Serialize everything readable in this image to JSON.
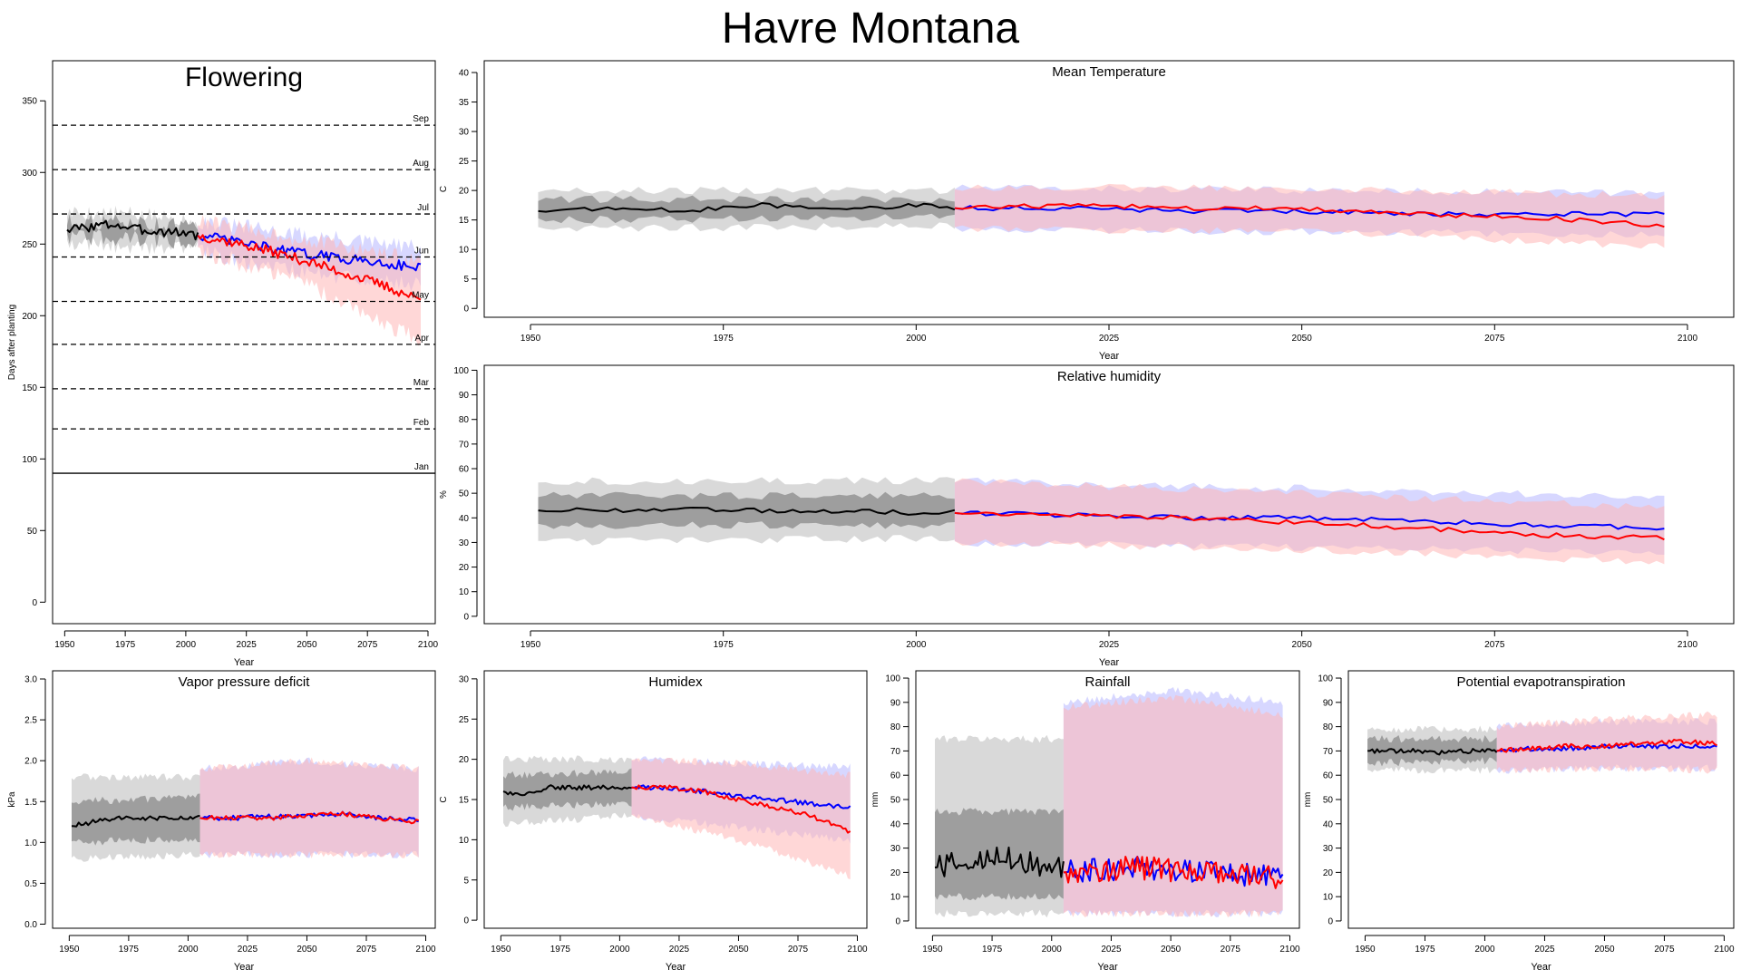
{
  "page": {
    "title": "Havre Montana"
  },
  "colors": {
    "historical": "#000000",
    "historical_band_outer": "#d9d9d9",
    "historical_band_inner": "#9e9e9e",
    "scenario_blue": "#0000ff",
    "scenario_red": "#ff0000",
    "band_blue": "#b7b7ff",
    "band_red": "#ffb7b7"
  },
  "chart_data": [
    {
      "id": "flowering",
      "type": "line",
      "title": "Flowering",
      "xlabel": "Year",
      "ylabel": "Days after planting",
      "xlim": [
        1945,
        2103
      ],
      "ylim": [
        -15,
        378
      ],
      "xticks": [
        1950,
        1975,
        2000,
        2025,
        2050,
        2075,
        2100
      ],
      "yticks": [
        0,
        50,
        100,
        150,
        200,
        250,
        300,
        350
      ],
      "hlines": [
        {
          "label": "Jan",
          "y": 90,
          "style": "solid"
        },
        {
          "label": "Feb",
          "y": 121,
          "style": "dashed"
        },
        {
          "label": "Mar",
          "y": 149,
          "style": "dashed"
        },
        {
          "label": "Apr",
          "y": 180,
          "style": "dashed"
        },
        {
          "label": "May",
          "y": 210,
          "style": "dashed"
        },
        {
          "label": "Jun",
          "y": 241,
          "style": "dashed"
        },
        {
          "label": "Jul",
          "y": 271,
          "style": "dashed"
        },
        {
          "label": "Aug",
          "y": 302,
          "style": "dashed"
        },
        {
          "label": "Sep",
          "y": 333,
          "style": "dashed"
        }
      ],
      "series": [
        {
          "x": [
            1951,
            1960,
            1970,
            1980,
            1990,
            2000,
            2005
          ],
          "values": [
            260,
            262,
            264,
            260,
            259,
            258,
            256
          ]
        },
        {
          "x": [
            2005,
            2020,
            2035,
            2050,
            2065,
            2080,
            2097
          ],
          "values": [
            256,
            252,
            247,
            243,
            240,
            237,
            234
          ]
        },
        {
          "x": [
            2005,
            2020,
            2035,
            2050,
            2065,
            2080,
            2097
          ],
          "values": [
            256,
            251,
            245,
            238,
            230,
            222,
            211
          ]
        }
      ],
      "bands": [
        {
          "x": [
            1951,
            1975,
            2005
          ],
          "lower": [
            250,
            249,
            246
          ],
          "upper": [
            272,
            271,
            267
          ]
        },
        {
          "x": [
            1951,
            1975,
            2005
          ],
          "lower": [
            255,
            254,
            251
          ],
          "upper": [
            266,
            265,
            262
          ]
        },
        {
          "x": [
            2005,
            2050,
            2097
          ],
          "lower": [
            245,
            230,
            222
          ],
          "upper": [
            266,
            256,
            247
          ]
        },
        {
          "x": [
            2005,
            2050,
            2097
          ],
          "lower": [
            245,
            222,
            182
          ],
          "upper": [
            266,
            253,
            238
          ]
        }
      ]
    },
    {
      "id": "mean-temperature",
      "type": "line",
      "title": "Mean Temperature",
      "xlabel": "Year",
      "ylabel": "C",
      "xlim": [
        1944,
        2106
      ],
      "ylim": [
        -1.5,
        42
      ],
      "xticks": [
        1950,
        1975,
        2000,
        2025,
        2050,
        2075,
        2100
      ],
      "yticks": [
        0,
        5,
        10,
        15,
        20,
        25,
        30,
        35,
        40
      ],
      "series": [
        {
          "x": [
            1951,
            1960,
            1970,
            1980,
            1990,
            2000,
            2005
          ],
          "values": [
            16.5,
            17,
            16.5,
            17.5,
            17,
            17.5,
            17
          ]
        },
        {
          "x": [
            2005,
            2020,
            2035,
            2050,
            2065,
            2080,
            2097
          ],
          "values": [
            17,
            17,
            16.5,
            16.5,
            16,
            16,
            16
          ]
        },
        {
          "x": [
            2005,
            2020,
            2035,
            2050,
            2065,
            2080,
            2097
          ],
          "values": [
            17,
            17.5,
            17,
            17,
            16,
            15.5,
            14
          ]
        }
      ],
      "bands": [
        {
          "x": [
            1951,
            2005
          ],
          "lower": [
            13.5,
            14
          ],
          "upper": [
            20,
            20
          ]
        },
        {
          "x": [
            1951,
            2005
          ],
          "lower": [
            15,
            15.5
          ],
          "upper": [
            18.5,
            18.5
          ]
        },
        {
          "x": [
            2005,
            2050,
            2097
          ],
          "lower": [
            13.5,
            13,
            12.5
          ],
          "upper": [
            20.5,
            20,
            19.5
          ]
        },
        {
          "x": [
            2005,
            2050,
            2097
          ],
          "lower": [
            13.5,
            13,
            10.5
          ],
          "upper": [
            20.5,
            20.5,
            19
          ]
        }
      ]
    },
    {
      "id": "relative-humidity",
      "type": "line",
      "title": "Relative humidity",
      "xlabel": "Year",
      "ylabel": "%",
      "xlim": [
        1944,
        2106
      ],
      "ylim": [
        -3,
        102
      ],
      "xticks": [
        1950,
        1975,
        2000,
        2025,
        2050,
        2075,
        2100
      ],
      "yticks": [
        0,
        10,
        20,
        30,
        40,
        50,
        60,
        70,
        80,
        90,
        100
      ],
      "series": [
        {
          "x": [
            1951,
            1960,
            1970,
            1980,
            1990,
            2000,
            2005
          ],
          "values": [
            43,
            43,
            44,
            43,
            43,
            42,
            43
          ]
        },
        {
          "x": [
            2005,
            2020,
            2035,
            2050,
            2065,
            2080,
            2097
          ],
          "values": [
            42,
            41,
            40,
            40,
            39,
            37,
            36
          ]
        },
        {
          "x": [
            2005,
            2020,
            2035,
            2050,
            2065,
            2080,
            2097
          ],
          "values": [
            42,
            41,
            40,
            38,
            36,
            33,
            32
          ]
        }
      ],
      "bands": [
        {
          "x": [
            1951,
            2005
          ],
          "lower": [
            30,
            32
          ],
          "upper": [
            55,
            55
          ]
        },
        {
          "x": [
            1951,
            2005
          ],
          "lower": [
            37,
            37
          ],
          "upper": [
            49,
            49
          ]
        },
        {
          "x": [
            2005,
            2050,
            2097
          ],
          "lower": [
            30,
            28,
            26
          ],
          "upper": [
            55,
            52,
            48
          ]
        },
        {
          "x": [
            2005,
            2050,
            2097
          ],
          "lower": [
            30,
            27,
            22
          ],
          "upper": [
            55,
            50,
            44
          ]
        }
      ]
    },
    {
      "id": "vapor-pressure-deficit",
      "type": "line",
      "title": "Vapor pressure deficit",
      "xlabel": "Year",
      "ylabel": "kPa",
      "xlim": [
        1943,
        2104
      ],
      "ylim": [
        -0.05,
        3.1
      ],
      "xticks": [
        1950,
        1975,
        2000,
        2025,
        2050,
        2075,
        2100
      ],
      "yticks": [
        0.0,
        0.5,
        1.0,
        1.5,
        2.0,
        2.5,
        3.0
      ],
      "series": [
        {
          "x": [
            1951,
            1960,
            1970,
            1980,
            1990,
            2000,
            2005
          ],
          "values": [
            1.2,
            1.25,
            1.3,
            1.3,
            1.3,
            1.3,
            1.3
          ]
        },
        {
          "x": [
            2005,
            2020,
            2035,
            2050,
            2065,
            2080,
            2097
          ],
          "values": [
            1.3,
            1.3,
            1.32,
            1.33,
            1.35,
            1.3,
            1.28
          ]
        },
        {
          "x": [
            2005,
            2020,
            2035,
            2050,
            2065,
            2080,
            2097
          ],
          "values": [
            1.3,
            1.3,
            1.3,
            1.33,
            1.35,
            1.3,
            1.25
          ]
        }
      ],
      "bands": [
        {
          "x": [
            1951,
            2005
          ],
          "lower": [
            0.8,
            0.85
          ],
          "upper": [
            1.8,
            1.8
          ]
        },
        {
          "x": [
            1951,
            2005
          ],
          "lower": [
            1.0,
            1.05
          ],
          "upper": [
            1.5,
            1.55
          ]
        },
        {
          "x": [
            2005,
            2050,
            2097
          ],
          "lower": [
            0.85,
            0.85,
            0.85
          ],
          "upper": [
            1.9,
            2.0,
            1.9
          ]
        },
        {
          "x": [
            2005,
            2050,
            2097
          ],
          "lower": [
            0.85,
            0.85,
            0.85
          ],
          "upper": [
            1.9,
            2.0,
            1.9
          ]
        }
      ]
    },
    {
      "id": "humidex",
      "type": "line",
      "title": "Humidex",
      "xlabel": "Year",
      "ylabel": "C",
      "xlim": [
        1943,
        2104
      ],
      "ylim": [
        -1,
        31
      ],
      "xticks": [
        1950,
        1975,
        2000,
        2025,
        2050,
        2075,
        2100
      ],
      "yticks": [
        0,
        5,
        10,
        15,
        20,
        25,
        30
      ],
      "series": [
        {
          "x": [
            1951,
            1960,
            1970,
            1980,
            1990,
            2000,
            2005
          ],
          "values": [
            16,
            15.5,
            16.5,
            16.5,
            16.5,
            16.5,
            16.5
          ]
        },
        {
          "x": [
            2005,
            2020,
            2035,
            2050,
            2065,
            2080,
            2097
          ],
          "values": [
            16.5,
            16.5,
            16,
            15.5,
            15,
            14.5,
            14
          ]
        },
        {
          "x": [
            2005,
            2020,
            2035,
            2050,
            2065,
            2080,
            2097
          ],
          "values": [
            16.5,
            16.5,
            16,
            15,
            14,
            13,
            11
          ]
        }
      ],
      "bands": [
        {
          "x": [
            1951,
            2005
          ],
          "lower": [
            12,
            13
          ],
          "upper": [
            20,
            20
          ]
        },
        {
          "x": [
            1951,
            2005
          ],
          "lower": [
            14,
            14.5
          ],
          "upper": [
            18,
            18.5
          ]
        },
        {
          "x": [
            2005,
            2050,
            2097
          ],
          "lower": [
            13,
            11.5,
            10
          ],
          "upper": [
            20,
            19.5,
            19
          ]
        },
        {
          "x": [
            2005,
            2050,
            2097
          ],
          "lower": [
            13,
            10,
            5.5
          ],
          "upper": [
            20,
            19.5,
            18
          ]
        }
      ]
    },
    {
      "id": "rainfall",
      "type": "line",
      "title": "Rainfall",
      "xlabel": "Year",
      "ylabel": "mm",
      "xlim": [
        1943,
        2104
      ],
      "ylim": [
        -3,
        103
      ],
      "xticks": [
        1950,
        1975,
        2000,
        2025,
        2050,
        2075,
        2100
      ],
      "yticks": [
        0,
        10,
        20,
        30,
        40,
        50,
        60,
        70,
        80,
        90,
        100
      ],
      "series": [
        {
          "x": [
            1951,
            1960,
            1970,
            1980,
            1990,
            2000,
            2005
          ],
          "values": [
            22,
            24,
            25,
            26,
            24,
            22,
            22
          ]
        },
        {
          "x": [
            2005,
            2020,
            2035,
            2050,
            2065,
            2080,
            2097
          ],
          "values": [
            20,
            21,
            22,
            21,
            20,
            19,
            18
          ]
        },
        {
          "x": [
            2005,
            2020,
            2035,
            2050,
            2065,
            2080,
            2097
          ],
          "values": [
            20,
            21,
            22,
            21,
            20,
            19,
            18
          ]
        }
      ],
      "bands": [
        {
          "x": [
            1951,
            2005
          ],
          "lower": [
            3,
            3
          ],
          "upper": [
            75,
            75
          ]
        },
        {
          "x": [
            1951,
            2005
          ],
          "lower": [
            10,
            10
          ],
          "upper": [
            45,
            45
          ]
        },
        {
          "x": [
            2005,
            2050,
            2097
          ],
          "lower": [
            3,
            3,
            3
          ],
          "upper": [
            90,
            95,
            90
          ]
        },
        {
          "x": [
            2005,
            2050,
            2097
          ],
          "lower": [
            3,
            3,
            3
          ],
          "upper": [
            88,
            92,
            85
          ]
        }
      ]
    },
    {
      "id": "potential-evapotranspiration",
      "type": "line",
      "title": "Potential evapotranspiration",
      "xlabel": "Year",
      "ylabel": "mm",
      "xlim": [
        1943,
        2104
      ],
      "ylim": [
        -3,
        103
      ],
      "xticks": [
        1950,
        1975,
        2000,
        2025,
        2050,
        2075,
        2100
      ],
      "yticks": [
        0,
        10,
        20,
        30,
        40,
        50,
        60,
        70,
        80,
        90,
        100
      ],
      "series": [
        {
          "x": [
            1951,
            1960,
            1970,
            1980,
            1990,
            2000,
            2005
          ],
          "values": [
            70,
            70,
            70,
            69,
            70,
            70,
            70
          ]
        },
        {
          "x": [
            2005,
            2020,
            2035,
            2050,
            2065,
            2080,
            2097
          ],
          "values": [
            70,
            71,
            71,
            72,
            72,
            72,
            72
          ]
        },
        {
          "x": [
            2005,
            2020,
            2035,
            2050,
            2065,
            2080,
            2097
          ],
          "values": [
            70,
            71,
            72,
            72,
            73,
            74,
            73
          ]
        }
      ],
      "bands": [
        {
          "x": [
            1951,
            2005
          ],
          "lower": [
            62,
            62
          ],
          "upper": [
            79,
            79
          ]
        },
        {
          "x": [
            1951,
            2005
          ],
          "lower": [
            65,
            66
          ],
          "upper": [
            75,
            75
          ]
        },
        {
          "x": [
            2005,
            2050,
            2097
          ],
          "lower": [
            62,
            63,
            63
          ],
          "upper": [
            80,
            82,
            82
          ]
        },
        {
          "x": [
            2005,
            2050,
            2097
          ],
          "lower": [
            62,
            63,
            62
          ],
          "upper": [
            80,
            83,
            85
          ]
        }
      ]
    }
  ]
}
